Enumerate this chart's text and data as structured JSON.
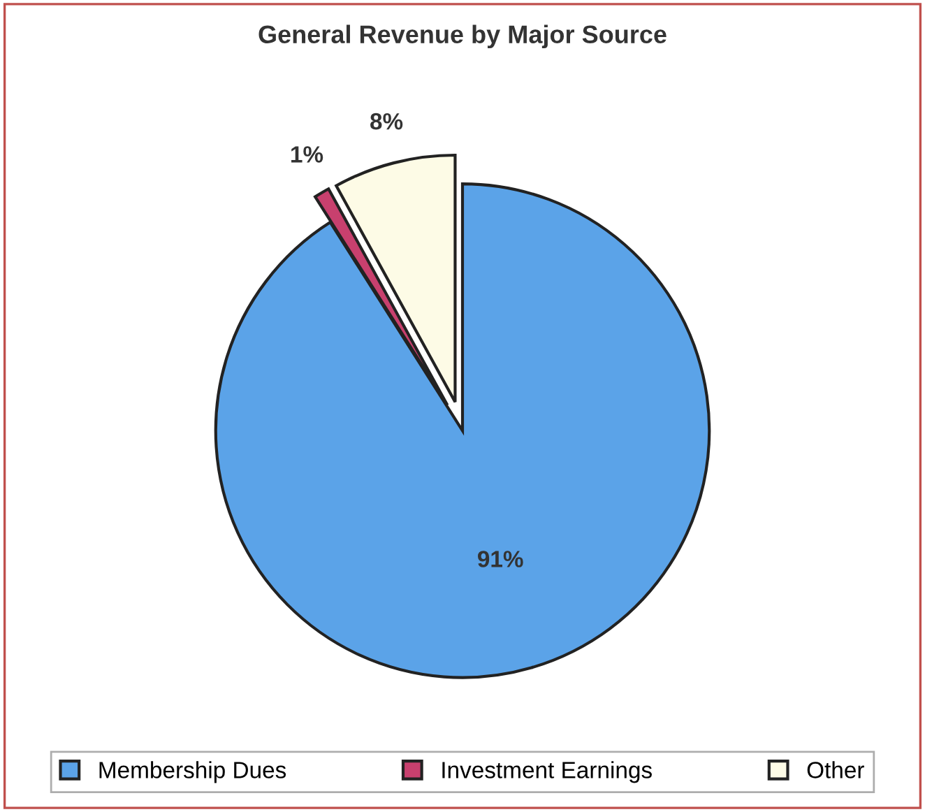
{
  "chart_data": {
    "type": "pie",
    "title": "General Revenue by Major Source",
    "categories": [
      "Membership Dues",
      "Investment Earnings",
      "Other"
    ],
    "values": [
      91,
      1,
      8
    ],
    "colors": [
      "#5ba3e8",
      "#c8406e",
      "#fdfbe6"
    ],
    "value_labels": [
      "91%",
      "1%",
      "8%"
    ],
    "legend": "bottom"
  }
}
